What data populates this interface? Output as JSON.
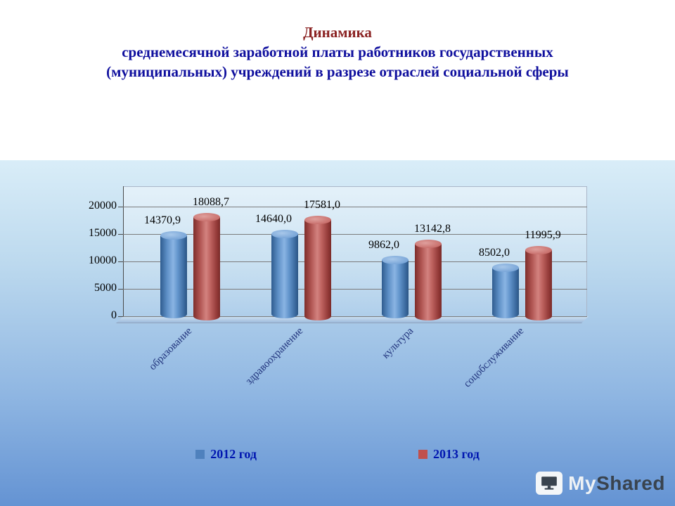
{
  "title": {
    "line1": "Динамика",
    "line2": "среднемесячной заработной платы работников государственных",
    "line3": "(муниципальных) учреждений в разрезе отраслей социальной сферы"
  },
  "chart_data": {
    "type": "bar",
    "style": "3d-cylinder",
    "categories": [
      "образование",
      "здравоохранение",
      "культура",
      "соцобслуживание"
    ],
    "series": [
      {
        "name": "2012 год",
        "color": "#4f81bd",
        "values": [
          14370.9,
          14640.0,
          9862.0,
          8502.0
        ],
        "labels": [
          "14370,9",
          "14640,0",
          "9862,0",
          "8502,0"
        ]
      },
      {
        "name": "2013 год",
        "color": "#c0504d",
        "values": [
          18088.7,
          17581.0,
          13142.8,
          11995.9
        ],
        "labels": [
          "18088,7",
          "17581,0",
          "13142,8",
          "11995,9"
        ]
      }
    ],
    "yticks": [
      0,
      5000,
      10000,
      15000,
      20000
    ],
    "ylim": [
      0,
      20000
    ],
    "xlabel": "",
    "ylabel": "",
    "grid": true,
    "legend_position": "bottom"
  },
  "legend": {
    "items": [
      {
        "label": "2012 год",
        "color": "#4f81bd"
      },
      {
        "label": "2013 год",
        "color": "#c0504d"
      }
    ]
  },
  "watermark": {
    "my": "My",
    "shared": "Shared"
  },
  "colors": {
    "title_accent": "#8b2323",
    "title_main": "#0f0f9e",
    "series_2012": "#4f81bd",
    "series_2013": "#c0504d",
    "legend_text": "#0016b0"
  }
}
